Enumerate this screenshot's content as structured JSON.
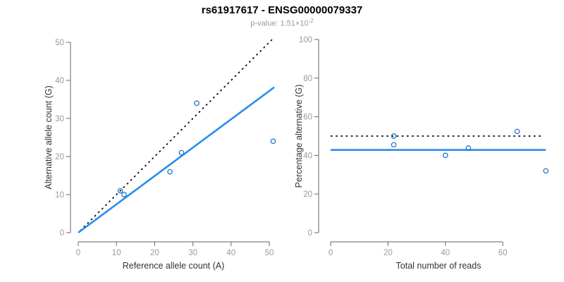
{
  "header": {
    "title": "rs61917617 - ENSG00000079337",
    "subtitle_prefix": "p-value: ",
    "subtitle_mantissa": "1.51",
    "subtitle_times": "×10",
    "subtitle_exponent": "-2"
  },
  "colors": {
    "line_blue": "#2b8ceb",
    "point_blue": "#2479d0",
    "dotted_black": "#0a0a0a",
    "axis_line_gray": "#808080",
    "tick_label_gray": "#9a9a9a",
    "axis_title_color": "#333333"
  },
  "chart_data": [
    {
      "name": "allele-count-scatter",
      "type": "scatter",
      "title": "",
      "xlabel": "Reference allele count (A)",
      "ylabel": "Alternative allele count (G)",
      "xlim": [
        0,
        52
      ],
      "ylim": [
        0,
        51
      ],
      "grid": "off",
      "xticks": [
        0,
        10,
        20,
        30,
        40,
        50
      ],
      "yticks": [
        0,
        10,
        20,
        30,
        40,
        50
      ],
      "points": [
        [
          11,
          11
        ],
        [
          12,
          10
        ],
        [
          24,
          16
        ],
        [
          27,
          21
        ],
        [
          31,
          34
        ],
        [
          51,
          24
        ]
      ],
      "lines": [
        {
          "name": "identity-line",
          "style": "dotted",
          "color_key": "dotted_black",
          "x1": 0.5,
          "y1": 0.5,
          "x2": 51,
          "y2": 51
        },
        {
          "name": "regression-line",
          "style": "solid",
          "color_key": "line_blue",
          "x1": 0,
          "y1": 0,
          "x2": 51.3,
          "y2": 38.2
        }
      ]
    },
    {
      "name": "percentage-alternative-scatter",
      "type": "scatter",
      "title": "",
      "xlabel": "Total number of reads",
      "ylabel": "Percentage alternative (G)",
      "xlim": [
        0,
        75
      ],
      "ylim": [
        0,
        100
      ],
      "grid": "off",
      "xticks": [
        0,
        20,
        40,
        60
      ],
      "yticks": [
        0,
        20,
        40,
        60,
        80,
        100
      ],
      "points": [
        [
          22,
          50
        ],
        [
          22,
          45.5
        ],
        [
          40,
          40
        ],
        [
          48,
          43.8
        ],
        [
          65,
          52.4
        ],
        [
          75,
          32
        ]
      ],
      "lines": [
        {
          "name": "fifty-percent-line",
          "style": "dotted",
          "color_key": "dotted_black",
          "x1": 0,
          "y1": 50,
          "x2": 73.5,
          "y2": 50
        },
        {
          "name": "mean-percentage-line",
          "style": "solid",
          "color_key": "line_blue",
          "x1": 0,
          "y1": 42.8,
          "x2": 75,
          "y2": 42.8
        }
      ]
    }
  ]
}
